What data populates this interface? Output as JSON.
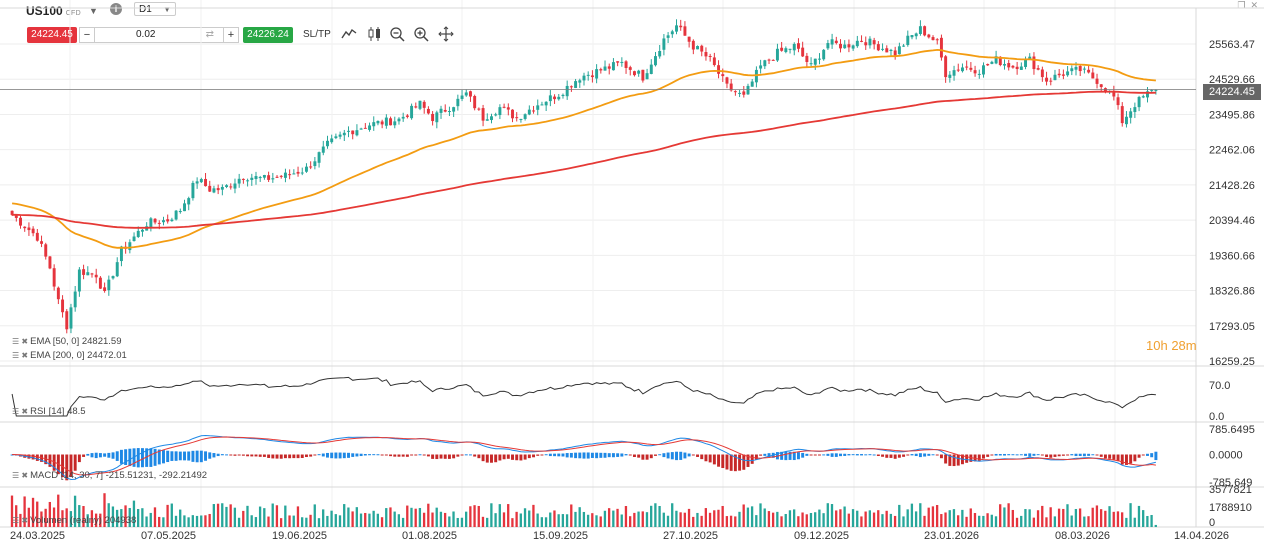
{
  "toolbar": {
    "symbol": "US100",
    "symbol_type": "CFD",
    "timeframe": "D1",
    "sell_price": "24224.45",
    "volume": "0.02",
    "buy_price": "24226.24",
    "sltp_label": "SL/TP",
    "icons": [
      "line-chart-icon",
      "candlestick-icon",
      "zoom-out-icon",
      "zoom-in-icon",
      "crosshair-move-icon"
    ],
    "window_icons": [
      "restore-icon",
      "close-icon"
    ]
  },
  "price_axis": {
    "ticks": [
      "25563.47",
      "24529.66",
      "23495.86",
      "22462.06",
      "21428.26",
      "20394.46",
      "19360.66",
      "18326.86",
      "17293.05",
      "16259.25"
    ],
    "current_price": "24224.45"
  },
  "indicators": {
    "ema50_label": "EMA [50, 0] 24821.59",
    "ema200_label": "EMA [200, 0] 24472.01",
    "rsi_label": "RSI [14] 48.5",
    "rsi_ticks": [
      "70.0",
      "0.0"
    ],
    "macd_label": "MACD [14, 30, 7] -215.51231, -292.21492",
    "macd_ticks": [
      "785.6495",
      "0.0000",
      "-785.649"
    ],
    "volume_label": "Volumen (realny) 204938",
    "volume_ticks": [
      "3577821",
      "1788910",
      "0"
    ]
  },
  "timer": {
    "hours": "10h",
    "minutes": "28m"
  },
  "x_axis": [
    "24.03.2025",
    "07.05.2025",
    "19.06.2025",
    "01.08.2025",
    "15.09.2025",
    "27.10.2025",
    "09.12.2025",
    "23.01.2026",
    "08.03.2026",
    "14.04.2026"
  ],
  "colors": {
    "up": "#26a69a",
    "down": "#e5343d",
    "ema50": "#f39c12",
    "ema200": "#e53935",
    "macd": "#1e88e5",
    "signal": "#e53935"
  },
  "chart_data": {
    "type": "candlestick",
    "instrument": "US100",
    "timeframe": "D1",
    "ylim": [
      16259.25,
      26000
    ],
    "price_anchors": [
      [
        0,
        20550
      ],
      [
        6,
        19900
      ],
      [
        9,
        19000
      ],
      [
        11,
        18000
      ],
      [
        13,
        17300
      ],
      [
        16,
        18900
      ],
      [
        20,
        18800
      ],
      [
        22,
        18200
      ],
      [
        26,
        19500
      ],
      [
        32,
        20300
      ],
      [
        37,
        20400
      ],
      [
        40,
        20700
      ],
      [
        44,
        21600
      ],
      [
        47,
        21300
      ],
      [
        50,
        21300
      ],
      [
        55,
        21700
      ],
      [
        60,
        21600
      ],
      [
        65,
        21700
      ],
      [
        70,
        21900
      ],
      [
        75,
        22600
      ],
      [
        80,
        23000
      ],
      [
        85,
        23200
      ],
      [
        92,
        23350
      ],
      [
        97,
        23800
      ],
      [
        100,
        23400
      ],
      [
        105,
        23800
      ],
      [
        108,
        24100
      ],
      [
        112,
        23400
      ],
      [
        116,
        23700
      ],
      [
        120,
        23400
      ],
      [
        125,
        23800
      ],
      [
        130,
        24100
      ],
      [
        135,
        24600
      ],
      [
        140,
        24800
      ],
      [
        145,
        25000
      ],
      [
        150,
        24600
      ],
      [
        155,
        25700
      ],
      [
        158,
        26100
      ],
      [
        162,
        25500
      ],
      [
        166,
        25100
      ],
      [
        170,
        24300
      ],
      [
        174,
        24000
      ],
      [
        178,
        24900
      ],
      [
        182,
        25300
      ],
      [
        186,
        25500
      ],
      [
        190,
        24900
      ],
      [
        194,
        25600
      ],
      [
        198,
        25500
      ],
      [
        202,
        25700
      ],
      [
        206,
        25500
      ],
      [
        210,
        25300
      ],
      [
        213,
        25700
      ],
      [
        216,
        26000
      ],
      [
        220,
        25600
      ],
      [
        222,
        24700
      ],
      [
        226,
        24900
      ],
      [
        230,
        24800
      ],
      [
        234,
        25100
      ],
      [
        238,
        24900
      ],
      [
        242,
        25100
      ],
      [
        246,
        24500
      ],
      [
        250,
        24700
      ],
      [
        254,
        24800
      ],
      [
        258,
        24500
      ],
      [
        262,
        24000
      ],
      [
        264,
        23300
      ],
      [
        267,
        23800
      ],
      [
        270,
        24100
      ],
      [
        272,
        24224.45
      ]
    ],
    "ema50_last": 24821.59,
    "ema200_last": 24472.01,
    "rsi_last": 48.5,
    "macd_last": -215.51231,
    "macd_signal_last": -292.21492,
    "volume_last": 204938,
    "rsi_ylim": [
      0,
      100
    ],
    "macd_ylim": [
      -785.649,
      785.6495
    ],
    "volume_ylim": [
      0,
      3577821
    ]
  }
}
